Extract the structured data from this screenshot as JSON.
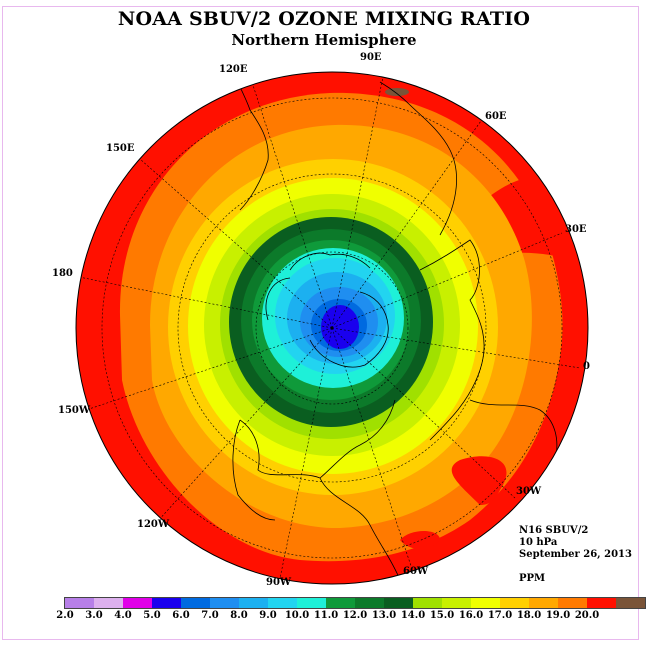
{
  "header": {
    "title": "NOAA SBUV/2 OZONE MIXING RATIO",
    "subtitle": "Northern Hemisphere"
  },
  "longitude_labels": [
    "120E",
    "90E",
    "60E",
    "150E",
    "30E",
    "180",
    "0",
    "150W",
    "30W",
    "120W",
    "60W",
    "90W"
  ],
  "info": {
    "instrument": "N16 SBUV/2",
    "level": "10 hPa",
    "date": "September 26, 2013",
    "units": "PPM"
  },
  "colorbar": {
    "ticks": [
      "2.0",
      "3.0",
      "4.0",
      "5.0",
      "6.0",
      "7.0",
      "8.0",
      "9.0",
      "10.0",
      "11.0",
      "12.0",
      "13.0",
      "14.0",
      "15.0",
      "16.0",
      "17.0",
      "18.0",
      "19.0",
      "20.0"
    ],
    "colors": [
      "#b77fe8",
      "#ddb0ee",
      "#e000e8",
      "#1a00ee",
      "#006ae0",
      "#1f8ef0",
      "#1cb0f0",
      "#22d4f0",
      "#1ef0d8",
      "#0f9a3a",
      "#0c7a2a",
      "#0a5e20",
      "#a0e000",
      "#c8f000",
      "#f0ff00",
      "#ffd000",
      "#ffa800",
      "#ff7a00",
      "#ff1000",
      "#7a5438"
    ]
  }
}
